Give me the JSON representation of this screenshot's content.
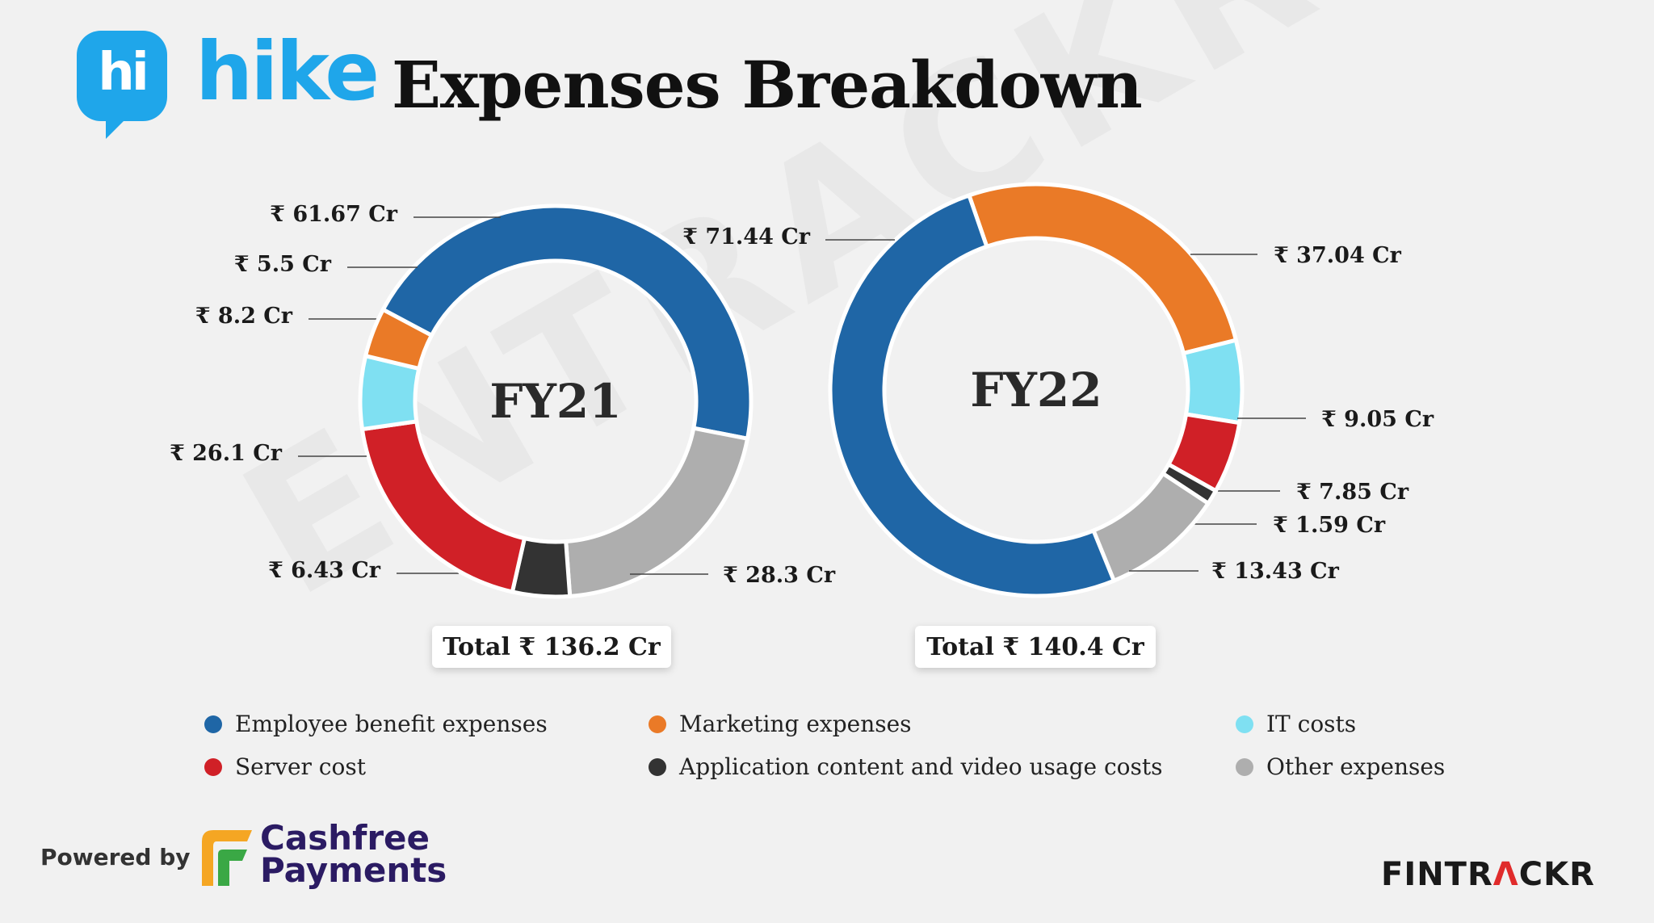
{
  "header": {
    "logo_badge": "hi",
    "logo_word": "hike",
    "title": "Expenses Breakdown"
  },
  "watermark": "ENTRACKR",
  "colors": {
    "employee": "#1f66a6",
    "marketing": "#ea7a27",
    "it": "#7fe0f2",
    "server": "#d02027",
    "app_content": "#333333",
    "other": "#aeaeae"
  },
  "chart_data": [
    {
      "type": "pie",
      "center_label": "FY21",
      "total_label": "Total ₹ 136.2 Cr",
      "slices": [
        {
          "category": "Employee benefit expenses",
          "value": 61.67,
          "label": "₹ 61.67 Cr",
          "color": "#1f66a6"
        },
        {
          "category": "Other expenses",
          "value": 28.3,
          "label": "₹ 28.3 Cr",
          "color": "#aeaeae"
        },
        {
          "category": "Application content and video usage costs",
          "value": 6.43,
          "label": "₹ 6.43 Cr",
          "color": "#333333"
        },
        {
          "category": "Server cost",
          "value": 26.1,
          "label": "₹ 26.1 Cr",
          "color": "#d02027"
        },
        {
          "category": "IT costs",
          "value": 8.2,
          "label": "₹ 8.2 Cr",
          "color": "#7fe0f2"
        },
        {
          "category": "Marketing expenses",
          "value": 5.5,
          "label": "₹ 5.5 Cr",
          "color": "#ea7a27"
        }
      ]
    },
    {
      "type": "pie",
      "center_label": "FY22",
      "total_label": "Total ₹ 140.4 Cr",
      "slices": [
        {
          "category": "Marketing expenses",
          "value": 37.04,
          "label": "₹ 37.04 Cr",
          "color": "#ea7a27"
        },
        {
          "category": "IT costs",
          "value": 9.05,
          "label": "₹ 9.05 Cr",
          "color": "#7fe0f2"
        },
        {
          "category": "Server cost",
          "value": 7.85,
          "label": "₹ 7.85 Cr",
          "color": "#d02027"
        },
        {
          "category": "Application content and video usage costs",
          "value": 1.59,
          "label": "₹ 1.59 Cr",
          "color": "#333333"
        },
        {
          "category": "Other expenses",
          "value": 13.43,
          "label": "₹ 13.43 Cr",
          "color": "#aeaeae"
        },
        {
          "category": "Employee benefit expenses",
          "value": 71.44,
          "label": "₹ 71.44 Cr",
          "color": "#1f66a6"
        }
      ]
    }
  ],
  "legend": [
    {
      "label": "Employee benefit expenses",
      "color": "#1f66a6"
    },
    {
      "label": "Marketing expenses",
      "color": "#ea7a27"
    },
    {
      "label": "IT costs",
      "color": "#7fe0f2"
    },
    {
      "label": "Server cost",
      "color": "#d02027"
    },
    {
      "label": "Application content and video usage costs",
      "color": "#333333"
    },
    {
      "label": "Other expenses",
      "color": "#aeaeae"
    }
  ],
  "footer": {
    "powered_by": "Powered by",
    "partner_line1": "Cashfree",
    "partner_line2": "Payments",
    "brand_part1": "FINTR",
    "brand_accent": "Λ",
    "brand_part2": "CKR"
  }
}
